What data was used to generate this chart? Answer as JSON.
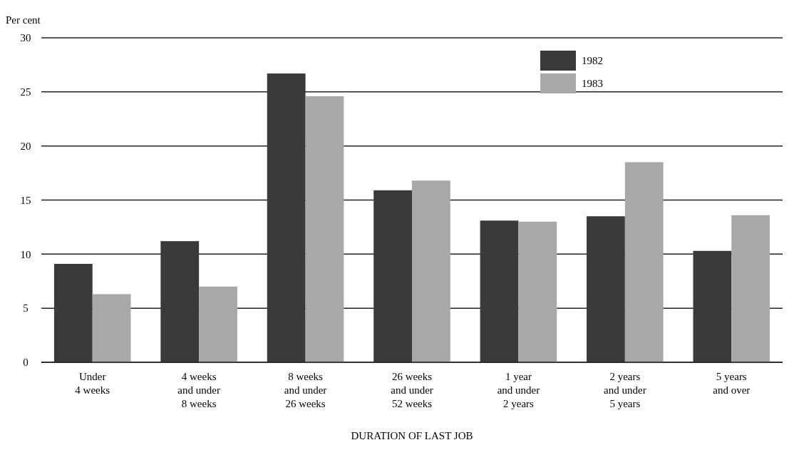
{
  "chart_data": {
    "type": "bar",
    "ylabel": "Per cent",
    "xlabel": "DURATION OF LAST JOB",
    "categories": [
      "Under\n4 weeks",
      "4 weeks\nand under\n8 weeks",
      "8 weeks\nand under\n26 weeks",
      "26 weeks\nand under\n52 weeks",
      "1 year\nand under\n2 years",
      "2 years\nand under\n5 years",
      "5 years\nand over"
    ],
    "series": [
      {
        "name": "1982",
        "color": "#3a3a3a",
        "values": [
          9.1,
          11.2,
          26.7,
          15.9,
          13.1,
          13.5,
          10.3
        ]
      },
      {
        "name": "1983",
        "color": "#a8a8a8",
        "values": [
          6.3,
          7.0,
          24.6,
          16.8,
          13.0,
          18.5,
          13.6
        ]
      }
    ],
    "ylim": [
      0,
      30
    ],
    "yticks": [
      0,
      5,
      10,
      15,
      20,
      25,
      30
    ],
    "grid": "y",
    "legend": "top right"
  }
}
